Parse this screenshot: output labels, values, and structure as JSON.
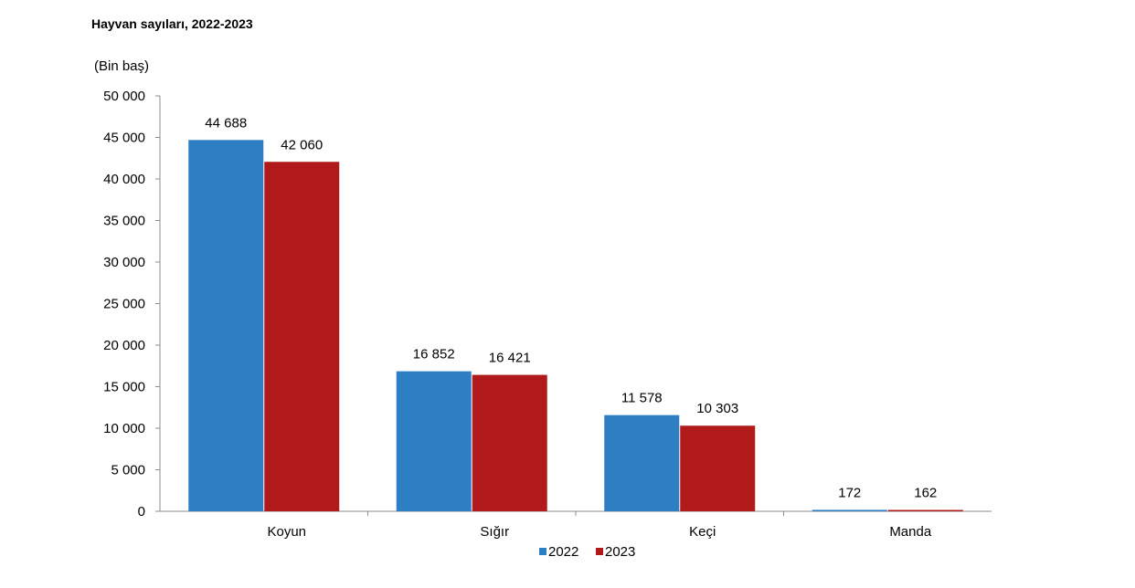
{
  "title": "Hayvan sayıları, 2022-2023",
  "chart_data": {
    "type": "bar",
    "title": "Hayvan sayıları, 2022-2023",
    "unit_label": "(Bin baş)",
    "xlabel": "",
    "ylabel": "",
    "categories": [
      "Koyun",
      "Sığır",
      "Keçi",
      "Manda"
    ],
    "series": [
      {
        "name": "2022",
        "color": "#2e7ec4",
        "values": [
          44688,
          16852,
          11578,
          172
        ],
        "labels": [
          "44 688",
          "16 852",
          "11 578",
          "172"
        ]
      },
      {
        "name": "2023",
        "color": "#b11a1a",
        "values": [
          42060,
          16421,
          10303,
          162
        ],
        "labels": [
          "42 060",
          "16 421",
          "10 303",
          "162"
        ]
      }
    ],
    "ylim": [
      0,
      50000
    ],
    "yticks": [
      0,
      5000,
      10000,
      15000,
      20000,
      25000,
      30000,
      35000,
      40000,
      45000,
      50000
    ],
    "ytick_labels": [
      "0",
      "5 000",
      "10 000",
      "15 000",
      "20 000",
      "25 000",
      "30 000",
      "35 000",
      "40 000",
      "45 000",
      "50 000"
    ],
    "grid": false,
    "legend_position": "bottom-center"
  }
}
